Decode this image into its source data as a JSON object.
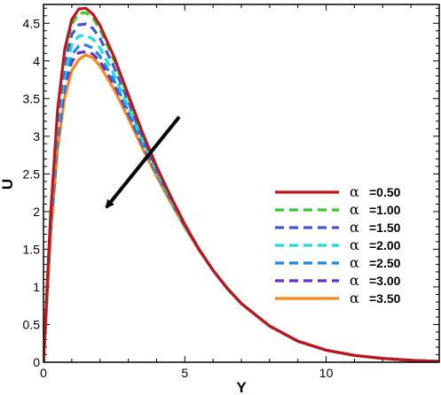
{
  "chart_data": {
    "type": "line",
    "xlabel": "Y",
    "ylabel": "U",
    "xlim": [
      0,
      14
    ],
    "ylim": [
      0,
      4.75
    ],
    "x_ticks": [
      "0",
      "5",
      "10"
    ],
    "y_ticks": [
      "0",
      "0.5",
      "1",
      "1.5",
      "2",
      "2.5",
      "3",
      "3.5",
      "4",
      "4.5"
    ],
    "legend_position": "right",
    "legend_symbol": "α",
    "annotation": "arrow pointing down-left indicating decreasing peak with increasing α",
    "x": [
      0,
      0.25,
      0.5,
      0.75,
      1.0,
      1.25,
      1.5,
      1.75,
      2.0,
      2.5,
      3.0,
      3.5,
      4.0,
      4.5,
      5.0,
      5.5,
      6.0,
      6.5,
      7.0,
      8.0,
      9.0,
      10.0,
      11.0,
      12.0,
      13.0,
      14.0
    ],
    "series": [
      {
        "name": "=0.50",
        "color": "#c0141e",
        "dash": "solid",
        "values": [
          0,
          1.95,
          3.35,
          4.15,
          4.55,
          4.69,
          4.7,
          4.62,
          4.47,
          4.05,
          3.55,
          3.05,
          2.6,
          2.2,
          1.83,
          1.5,
          1.22,
          0.98,
          0.78,
          0.48,
          0.28,
          0.16,
          0.09,
          0.05,
          0.025,
          0.01
        ]
      },
      {
        "name": "=1.00",
        "color": "#33cc33",
        "dash": "dashed",
        "values": [
          0,
          1.92,
          3.3,
          4.1,
          4.49,
          4.63,
          4.64,
          4.57,
          4.42,
          4.01,
          3.52,
          3.03,
          2.59,
          2.19,
          1.83,
          1.5,
          1.22,
          0.98,
          0.78,
          0.48,
          0.28,
          0.16,
          0.09,
          0.05,
          0.025,
          0.01
        ]
      },
      {
        "name": "=1.50",
        "color": "#4455dd",
        "dash": "dashed",
        "values": [
          0,
          1.87,
          3.2,
          3.97,
          4.35,
          4.48,
          4.49,
          4.43,
          4.3,
          3.92,
          3.46,
          2.99,
          2.57,
          2.18,
          1.82,
          1.5,
          1.22,
          0.98,
          0.78,
          0.48,
          0.28,
          0.16,
          0.09,
          0.05,
          0.025,
          0.01
        ]
      },
      {
        "name": "=2.00",
        "color": "#22dddd",
        "dash": "dashed",
        "values": [
          0,
          1.82,
          3.1,
          3.84,
          4.21,
          4.33,
          4.34,
          4.29,
          4.17,
          3.82,
          3.39,
          2.95,
          2.54,
          2.16,
          1.81,
          1.5,
          1.22,
          0.98,
          0.78,
          0.48,
          0.28,
          0.16,
          0.09,
          0.05,
          0.025,
          0.01
        ]
      },
      {
        "name": "=2.50",
        "color": "#1a88e0",
        "dash": "dashed",
        "values": [
          0,
          1.78,
          3.02,
          3.73,
          4.08,
          4.2,
          4.21,
          4.17,
          4.06,
          3.74,
          3.33,
          2.91,
          2.52,
          2.15,
          1.81,
          1.5,
          1.22,
          0.98,
          0.78,
          0.48,
          0.28,
          0.16,
          0.09,
          0.05,
          0.025,
          0.01
        ]
      },
      {
        "name": "=3.00",
        "color": "#6a2ccc",
        "dash": "dashed",
        "values": [
          0,
          1.74,
          2.95,
          3.65,
          3.99,
          4.11,
          4.12,
          4.09,
          3.99,
          3.69,
          3.3,
          2.89,
          2.51,
          2.15,
          1.81,
          1.5,
          1.22,
          0.98,
          0.78,
          0.48,
          0.28,
          0.16,
          0.09,
          0.05,
          0.025,
          0.01
        ]
      },
      {
        "name": "=3.50",
        "color": "#f28a1e",
        "dash": "solid",
        "values": [
          0,
          1.68,
          2.84,
          3.52,
          3.87,
          4.02,
          4.08,
          4.04,
          3.93,
          3.62,
          3.24,
          2.84,
          2.47,
          2.12,
          1.79,
          1.49,
          1.22,
          0.98,
          0.78,
          0.48,
          0.28,
          0.16,
          0.09,
          0.05,
          0.025,
          0.01
        ]
      }
    ]
  }
}
